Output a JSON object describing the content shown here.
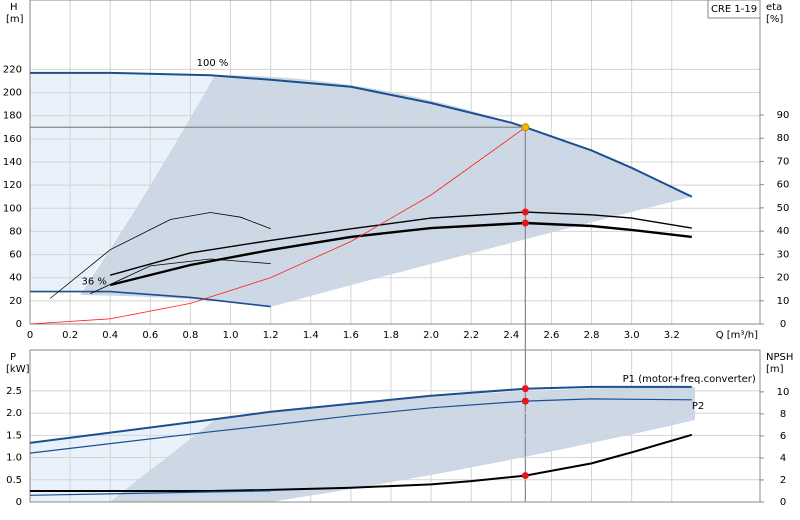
{
  "chart_data": [
    {
      "type": "line",
      "title": "CRE 1-19",
      "y_label": "H",
      "y_unit": "[m]",
      "y2_label": "eta",
      "y2_unit": "[%]",
      "x_label": "Q [m³/h]",
      "xlim": [
        0,
        3.64
      ],
      "xticks": [
        0,
        0.2,
        0.4,
        0.6,
        0.8,
        {
          "value": 1,
          "label": "1.0"
        },
        1.2,
        1.4,
        1.6,
        1.8,
        {
          "value": 2,
          "label": "2.0"
        },
        2.2,
        2.4,
        2.6,
        2.8,
        {
          "value": 3,
          "label": "3.0"
        },
        3.2
      ],
      "ylim": [
        0,
        280
      ],
      "yticks": [
        0,
        20,
        40,
        60,
        80,
        100,
        120,
        140,
        160,
        180,
        200,
        220
      ],
      "y2lim": [
        0,
        139.5
      ],
      "y2ticks": [
        0,
        10,
        20,
        30,
        40,
        50,
        60,
        70,
        80,
        90
      ],
      "grid": true,
      "series": [
        {
          "name": "100 %",
          "color": "#1c4f8f",
          "x": [
            0,
            0.4,
            0.9,
            1.2,
            1.6,
            2.0,
            2.4,
            2.47,
            2.8,
            3.0,
            3.3
          ],
          "values": [
            217,
            217,
            215,
            211,
            205,
            191,
            174,
            170,
            150,
            135,
            110
          ]
        },
        {
          "name": "36 %",
          "color": "#1c4f8f",
          "x": [
            0,
            0.4,
            0.8,
            1.2
          ],
          "values": [
            28,
            28,
            23,
            15
          ]
        },
        {
          "color": "#000000",
          "axis": "y2",
          "x": [
            0.4,
            0.8,
            1.2,
            1.6,
            2.0,
            2.47,
            2.8,
            3.0,
            3.3
          ],
          "values": [
            21,
            30.6,
            36,
            41,
            45.6,
            48.2,
            47,
            45.6,
            41.3
          ]
        },
        {
          "color": "#000000",
          "axis": "y2",
          "x": [
            0.4,
            0.8,
            1.2,
            1.6,
            2.0,
            2.47,
            2.8,
            3.0,
            3.3
          ],
          "values": [
            16.8,
            25.4,
            31.9,
            37.5,
            41.3,
            43.5,
            42.2,
            40.5,
            37.5
          ]
        },
        {
          "color": "#000000",
          "axis": "y2",
          "x": [
            0.1,
            0.4,
            0.7,
            0.9,
            1.05,
            1.2
          ],
          "values": [
            11,
            32,
            45,
            48,
            46,
            41
          ]
        },
        {
          "color": "#000000",
          "axis": "y2",
          "x": [
            0.3,
            0.6,
            0.9,
            1.2
          ],
          "values": [
            13,
            25,
            28,
            26
          ]
        },
        {
          "color": "#ff2020",
          "x": [
            0,
            0.4,
            0.8,
            1.2,
            1.6,
            2.0,
            2.47
          ],
          "values": [
            0,
            4.5,
            17.8,
            40.1,
            71.3,
            111.5,
            170
          ]
        }
      ],
      "points": [
        {
          "x": 2.47,
          "value": 170,
          "color": "#f5b800",
          "guide": true
        },
        {
          "x": 2.47,
          "value": 48.2,
          "axis": "y2",
          "color": "#e8141b"
        },
        {
          "x": 2.47,
          "value": 43.5,
          "axis": "y2",
          "color": "#e8141b"
        }
      ]
    },
    {
      "type": "line",
      "y_label": "P",
      "y_unit": "[kW]",
      "y2_label": "NPSH",
      "y2_unit": "[m]",
      "xlim": [
        0,
        3.64
      ],
      "ylim": [
        0,
        3.42
      ],
      "yticks": [
        0,
        0.5,
        {
          "value": 1,
          "label": "1.0"
        },
        1.5,
        {
          "value": 2,
          "label": "2.0"
        },
        2.5
      ],
      "y2lim": [
        0,
        13.8
      ],
      "y2ticks": [
        0,
        2,
        4,
        6,
        8,
        10
      ],
      "grid": true,
      "series": [
        {
          "name": "P1 (motor+freq.converter)",
          "color": "#1c4f8f",
          "x": [
            0,
            0.9,
            1.2,
            1.6,
            2.0,
            2.47,
            2.8,
            3.3
          ],
          "values": [
            1.33,
            1.85,
            2.03,
            2.21,
            2.39,
            2.55,
            2.59,
            2.59
          ]
        },
        {
          "name": "P2",
          "color": "#1c4f8f",
          "x": [
            0,
            0.9,
            1.2,
            1.6,
            2.0,
            2.47,
            2.8,
            3.3
          ],
          "values": [
            1.1,
            1.58,
            1.73,
            1.94,
            2.12,
            2.27,
            2.32,
            2.3
          ]
        },
        {
          "color": "#000000",
          "axis": "y2",
          "x": [
            0,
            0.9,
            1.2,
            1.6,
            2.0,
            2.2,
            2.47,
            2.8,
            3.0,
            3.3
          ],
          "values": [
            1,
            1,
            1.1,
            1.3,
            1.6,
            1.9,
            2.4,
            3.5,
            4.5,
            6.1
          ]
        },
        {
          "color": "#1c4f8f",
          "x": [
            0,
            1.2
          ],
          "values": [
            0.15,
            0.25
          ]
        }
      ],
      "points": [
        {
          "x": 2.47,
          "value": 2.55,
          "color": "#e8141b"
        },
        {
          "x": 2.47,
          "value": 2.27,
          "color": "#e8141b"
        },
        {
          "x": 2.47,
          "value": 2.4,
          "axis": "y2",
          "color": "#e8141b"
        }
      ]
    }
  ]
}
